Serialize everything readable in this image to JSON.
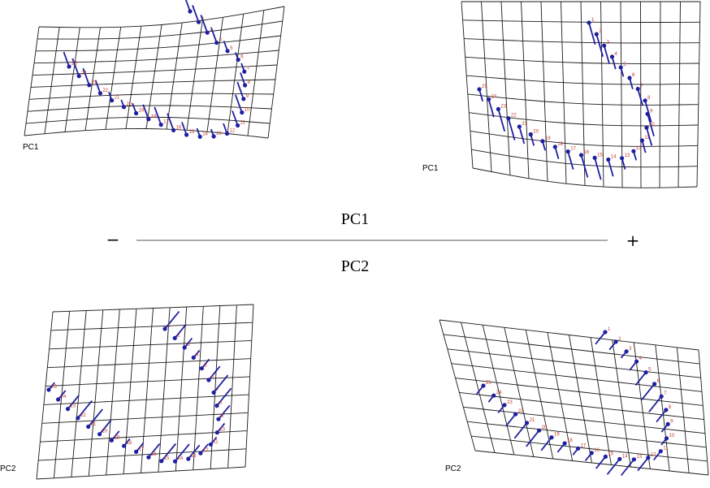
{
  "captions": {
    "top": "PC1",
    "bottom": "PC2",
    "minus": "−",
    "plus": "+"
  },
  "panels": [
    {
      "id": "pc1-minus",
      "label": "PC1"
    },
    {
      "id": "pc1-plus",
      "label": "PC1"
    },
    {
      "id": "pc2-minus",
      "label": "PC2"
    },
    {
      "id": "pc2-plus",
      "label": "PC2"
    }
  ],
  "landmark_labels": [
    "1",
    "2",
    "3",
    "4",
    "5",
    "6",
    "7",
    "8",
    "9",
    "10",
    "11",
    "12",
    "13",
    "14",
    "15",
    "16",
    "17",
    "18",
    "19",
    "20",
    "21",
    "22",
    "23",
    "24",
    "25"
  ],
  "colors": {
    "vector": "#1f1fa0",
    "landmark_label": "#c0392b",
    "grid": "#1a1a1a"
  }
}
